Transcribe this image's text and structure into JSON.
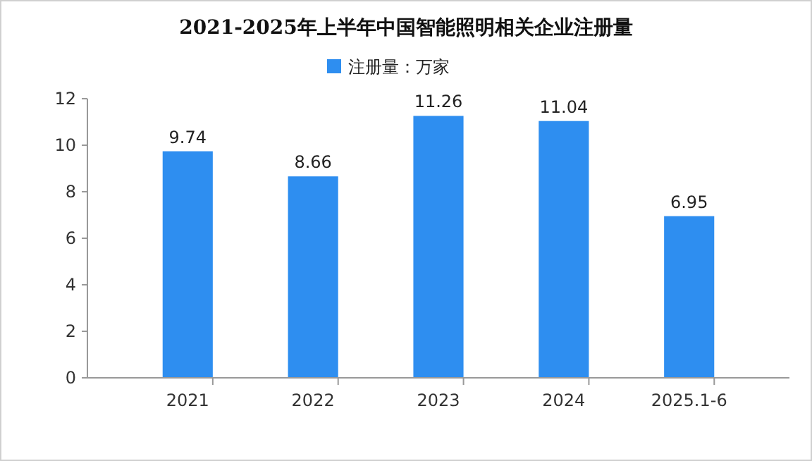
{
  "chart_data": {
    "type": "bar",
    "title": "2021-2025年上半年中国智能照明相关企业注册量",
    "categories": [
      "2021",
      "2022",
      "2023",
      "2024",
      "2025.1-6"
    ],
    "series": [
      {
        "name": "注册量：万家",
        "color": "#2e8ef0",
        "values": [
          9.74,
          8.66,
          11.26,
          11.04,
          6.95
        ]
      }
    ],
    "ylim": [
      0,
      12
    ],
    "yticks": [
      0,
      2,
      4,
      6,
      8,
      10,
      12
    ],
    "grid": false,
    "legend": "top",
    "data_labels": true
  }
}
